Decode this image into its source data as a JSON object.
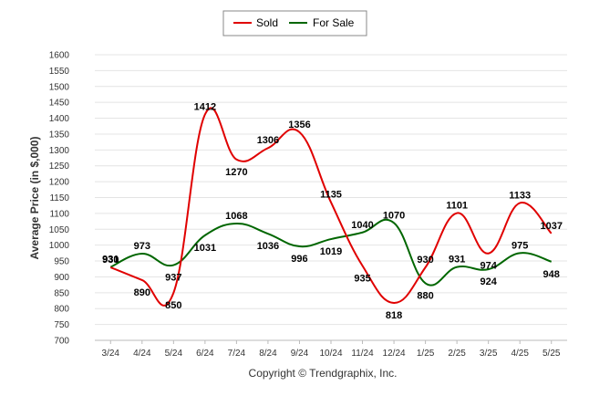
{
  "chart_data": {
    "type": "line",
    "ylabel": "Average Price (in $,000)",
    "footer": "Copyright © Trendgraphix, Inc.",
    "legend_position": "top-center",
    "grid": true,
    "ylim": [
      700,
      1600
    ],
    "ytick_step": 50,
    "categories": [
      "3/24",
      "4/24",
      "5/24",
      "6/24",
      "7/24",
      "8/24",
      "9/24",
      "10/24",
      "11/24",
      "12/24",
      "1/25",
      "2/25",
      "3/25",
      "4/25",
      "5/25"
    ],
    "series": [
      {
        "name": "Sold",
        "color": "#e00000",
        "values": [
          930,
          890,
          850,
          1412,
          1270,
          1306,
          1356,
          1135,
          935,
          818,
          930,
          1101,
          974,
          1133,
          1037
        ]
      },
      {
        "name": "For Sale",
        "color": "#006600",
        "values": [
          931,
          973,
          937,
          1031,
          1068,
          1036,
          996,
          1019,
          1040,
          1070,
          880,
          931,
          924,
          975,
          948
        ]
      }
    ]
  }
}
